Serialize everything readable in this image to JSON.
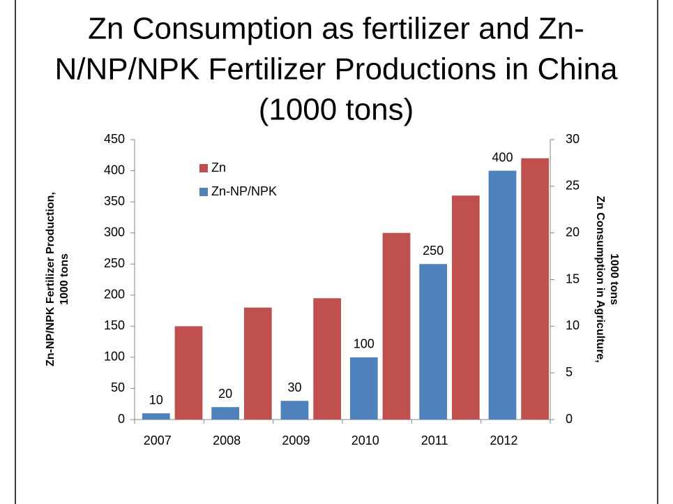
{
  "chart_data": {
    "type": "bar",
    "title": [
      "Zn Consumption as fertilizer and Zn-",
      "N/NP/NPK Fertilizer Productions in China",
      "(1000 tons)"
    ],
    "ylabel": [
      "Zn-NP/NPK Fertilizer Production,",
      "1000 tons"
    ],
    "y2label": [
      "Zn Consumption in Agriculture,",
      "1000 tons"
    ],
    "categories": [
      "2007",
      "2008",
      "2009",
      "2010",
      "2011",
      "2012"
    ],
    "series": [
      {
        "name": "Zn",
        "color": "#c0504d",
        "axis": "y2",
        "values": [
          10,
          12,
          13,
          20,
          24,
          28
        ]
      },
      {
        "name": "Zn-NP/NPK",
        "color": "#4f81bd",
        "axis": "y",
        "values": [
          10,
          20,
          30,
          100,
          250,
          400
        ],
        "labels": true
      }
    ],
    "ylim": [
      0,
      450
    ],
    "yticks": [
      0,
      50,
      100,
      150,
      200,
      250,
      300,
      350,
      400,
      450
    ],
    "y2lim": [
      0,
      30
    ],
    "y2ticks": [
      0,
      5,
      10,
      15,
      20,
      25,
      30
    ],
    "grid": false
  }
}
